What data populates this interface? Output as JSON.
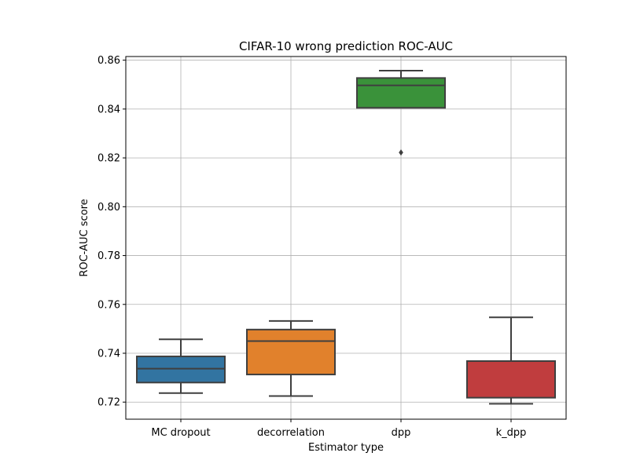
{
  "chart_data": {
    "type": "box",
    "title": "CIFAR-10 wrong prediction ROC-AUC",
    "xlabel": "Estimator type",
    "ylabel": "ROC-AUC score",
    "ylim": [
      0.713,
      0.8615
    ],
    "yticks": [
      0.72,
      0.74,
      0.76,
      0.78,
      0.8,
      0.82,
      0.84,
      0.86
    ],
    "ytick_labels": [
      "0.72",
      "0.74",
      "0.76",
      "0.78",
      "0.80",
      "0.82",
      "0.84",
      "0.86"
    ],
    "grid": true,
    "categories": [
      "MC dropout",
      "decorrelation",
      "dpp",
      "k_dpp"
    ],
    "boxes": [
      {
        "category": "MC dropout",
        "color": "#3274a1",
        "whisker_low": 0.7237,
        "q1": 0.728,
        "median": 0.7337,
        "q3": 0.7387,
        "whisker_high": 0.7457,
        "outliers": []
      },
      {
        "category": "decorrelation",
        "color": "#e1812c",
        "whisker_low": 0.7225,
        "q1": 0.7313,
        "median": 0.745,
        "q3": 0.7497,
        "whisker_high": 0.7532,
        "outliers": []
      },
      {
        "category": "dpp",
        "color": "#3a923a",
        "whisker_low": 0.8405,
        "q1": 0.8405,
        "median": 0.8497,
        "q3": 0.8527,
        "whisker_high": 0.8557,
        "outliers": [
          0.8222
        ]
      },
      {
        "category": "k_dpp",
        "color": "#c03d3e",
        "whisker_low": 0.7193,
        "q1": 0.7218,
        "median": 0.7368,
        "q3": 0.7368,
        "whisker_high": 0.7547,
        "outliers": []
      }
    ]
  }
}
